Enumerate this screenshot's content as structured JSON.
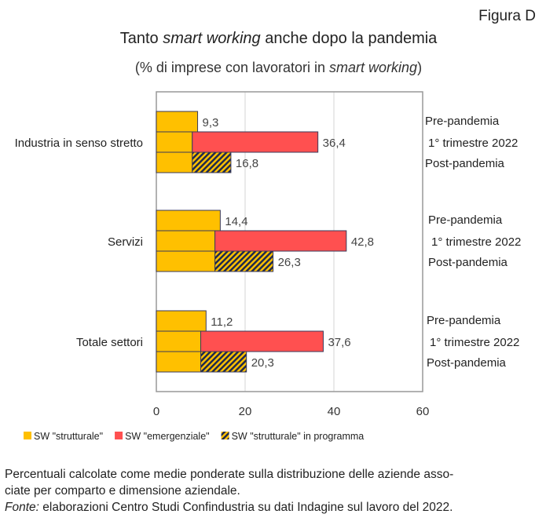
{
  "figure_label": "Figura D",
  "title_parts": [
    "Tanto ",
    "smart working",
    " anche dopo la pandemia"
  ],
  "subtitle_parts": [
    "(% di imprese con lavoratori in ",
    "smart working",
    ")"
  ],
  "chart_data": {
    "type": "bar",
    "orientation": "horizontal",
    "stacked": true,
    "categories": [
      "Industria in senso stretto",
      "Servizi",
      "Totale settori"
    ],
    "bar_labels": [
      "Pre-pandemia",
      "1° trimestre 2022",
      "Post-pandemia"
    ],
    "data": [
      {
        "category": "Industria in senso stretto",
        "bars": [
          {
            "label": "Pre-pandemia",
            "strutturale": 9.3,
            "total": 9.3,
            "total_label": "9,3"
          },
          {
            "label": "1° trimestre 2022",
            "strutturale": 8.1,
            "emergenziale": 28.3,
            "total": 36.4,
            "total_label": "36,4"
          },
          {
            "label": "Post-pandemia",
            "strutturale": 8.1,
            "in_programma": 8.7,
            "total": 16.8,
            "total_label": "16,8"
          }
        ]
      },
      {
        "category": "Servizi",
        "bars": [
          {
            "label": "Pre-pandemia",
            "strutturale": 14.4,
            "total": 14.4,
            "total_label": "14,4"
          },
          {
            "label": "1° trimestre 2022",
            "strutturale": 13.2,
            "emergenziale": 29.6,
            "total": 42.8,
            "total_label": "42,8"
          },
          {
            "label": "Post-pandemia",
            "strutturale": 13.2,
            "in_programma": 13.1,
            "total": 26.3,
            "total_label": "26,3"
          }
        ]
      },
      {
        "category": "Totale settori",
        "bars": [
          {
            "label": "Pre-pandemia",
            "strutturale": 11.2,
            "total": 11.2,
            "total_label": "11,2"
          },
          {
            "label": "1° trimestre 2022",
            "strutturale": 10.0,
            "emergenziale": 27.6,
            "total": 37.6,
            "total_label": "37,6"
          },
          {
            "label": "Post-pandemia",
            "strutturale": 10.0,
            "in_programma": 10.3,
            "total": 20.3,
            "total_label": "20,3"
          }
        ]
      }
    ],
    "xlim": [
      0,
      60
    ],
    "xticks": [
      "0",
      "20",
      "40",
      "60"
    ],
    "grid": "vertical",
    "legend_position": "bottom",
    "legend": [
      {
        "key": "strutturale",
        "label": "SW \"strutturale\"",
        "color": "#FFC000"
      },
      {
        "key": "emergenziale",
        "label": "SW \"emergenziale\"",
        "color": "#FF5050"
      },
      {
        "key": "in_programma",
        "label": "SW \"strutturale\" in programma",
        "color": "#FFC000",
        "pattern": "hatched-navy"
      }
    ]
  },
  "notes": {
    "line1": "Percentuali calcolate come medie ponderate sulla distribuzione delle aziende asso-",
    "line2": "ciate per comparto e dimensione aziendale.",
    "source_label": "Fonte:",
    "source_text": " elaborazioni Centro Studi Confindustria su dati Indagine sul lavoro del 2022."
  }
}
